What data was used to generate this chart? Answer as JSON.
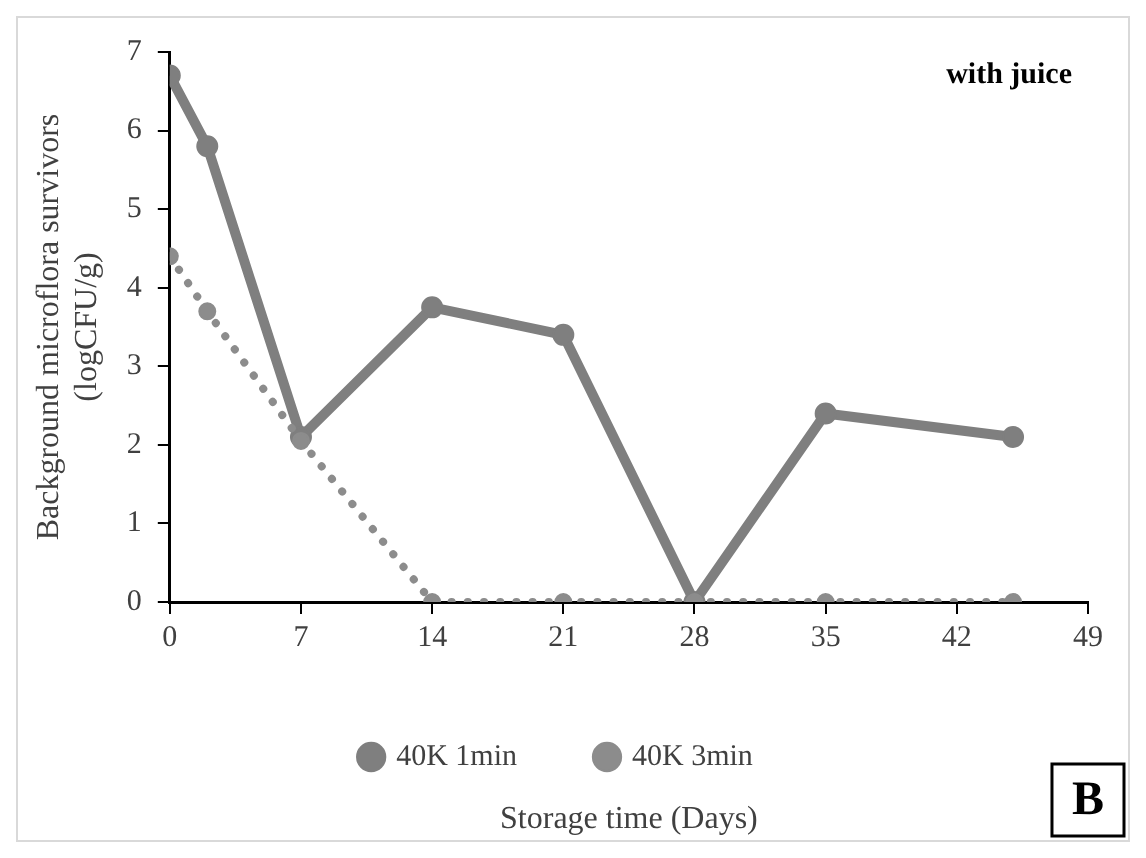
{
  "chart_data": {
    "type": "line",
    "xlabel": "Storage time (Days)",
    "ylabel": "Background microflora survivors\n(logCFU/g)",
    "annotations": [
      "with juice",
      "B"
    ],
    "x": [
      0,
      2,
      7,
      14,
      21,
      28,
      35,
      45
    ],
    "series": [
      {
        "name": "40K 1min",
        "color": "#7f7f7f",
        "line_style": "solid",
        "values": [
          6.7,
          5.8,
          2.1,
          3.75,
          3.4,
          0,
          2.4,
          2.1
        ]
      },
      {
        "name": "40K 3min",
        "color": "#8c8c8c",
        "line_style": "dotted",
        "values": [
          4.4,
          3.7,
          2.05,
          0,
          0,
          0,
          0,
          0
        ]
      }
    ],
    "xlim": [
      0,
      49
    ],
    "xticks": [
      0,
      7,
      14,
      21,
      28,
      35,
      42,
      49
    ],
    "ylim": [
      0,
      7
    ],
    "yticks": [
      0,
      1,
      2,
      3,
      4,
      5,
      6,
      7
    ],
    "grid": false,
    "legend": "bottom",
    "marker": "circle"
  }
}
